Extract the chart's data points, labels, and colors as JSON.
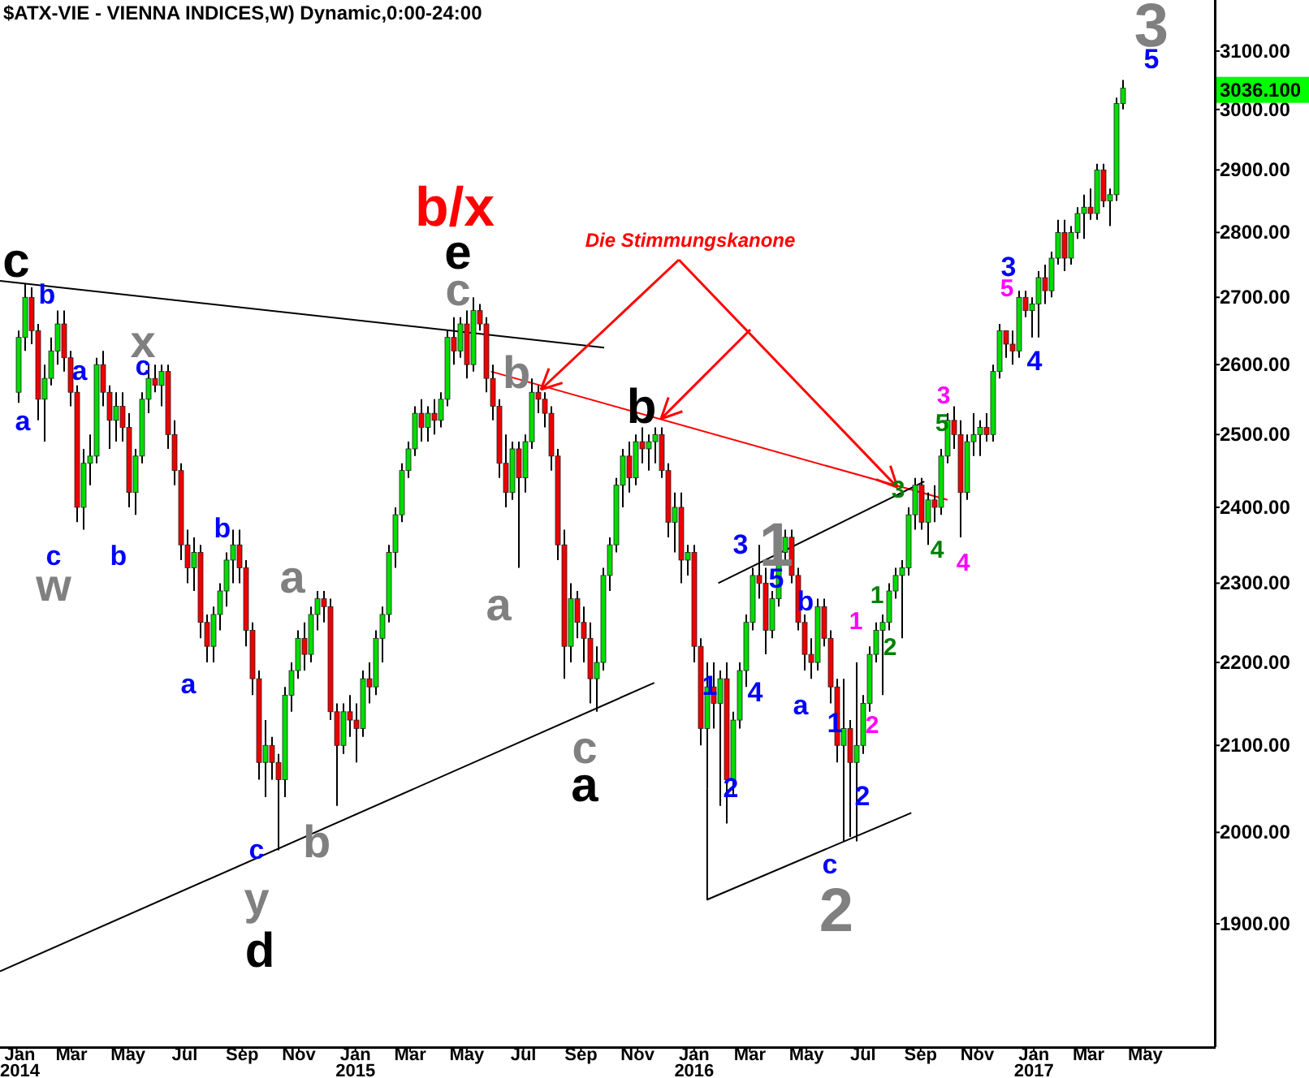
{
  "chart_data": {
    "type": "candlestick",
    "title": "$ATX-VIE - VIENNA INDICES,W) Dynamic,0:00-24:00",
    "log": true,
    "xlim": [
      "2013-12-14",
      "2017-07-15"
    ],
    "xticks": [
      {
        "value": "2014-01-01",
        "label": "Jan 2014"
      },
      {
        "value": "2014-03-01",
        "label": "Mar"
      },
      {
        "value": "2014-05-01",
        "label": "May"
      },
      {
        "value": "2014-07-01",
        "label": "Jul"
      },
      {
        "value": "2014-09-01",
        "label": "Sep"
      },
      {
        "value": "2014-11-01",
        "label": "Nov"
      },
      {
        "value": "2015-01-01",
        "label": "Jan 2015"
      },
      {
        "value": "2015-03-01",
        "label": "Mar"
      },
      {
        "value": "2015-05-01",
        "label": "May"
      },
      {
        "value": "2015-07-01",
        "label": "Jul"
      },
      {
        "value": "2015-09-01",
        "label": "Sep"
      },
      {
        "value": "2015-11-01",
        "label": "Nov"
      },
      {
        "value": "2016-01-01",
        "label": "Jan 2016"
      },
      {
        "value": "2016-03-01",
        "label": "Mar"
      },
      {
        "value": "2016-05-01",
        "label": "May"
      },
      {
        "value": "2016-07-01",
        "label": "Jul"
      },
      {
        "value": "2016-09-01",
        "label": "Sep"
      },
      {
        "value": "2016-11-01",
        "label": "Nov"
      },
      {
        "value": "2017-01-01",
        "label": "Jan 2017"
      },
      {
        "value": "2017-03-01",
        "label": "Mar"
      },
      {
        "value": "2017-05-01",
        "label": "May"
      }
    ],
    "ylim": [
      1773,
      3190
    ],
    "yticks": [
      {
        "value": 1900,
        "label": "1900.00"
      },
      {
        "value": 2000,
        "label": "2000.00"
      },
      {
        "value": 2100,
        "label": "2100.00"
      },
      {
        "value": 2200,
        "label": "2200.00"
      },
      {
        "value": 2300,
        "label": "2300.00"
      },
      {
        "value": 2400,
        "label": "2400.00"
      },
      {
        "value": 2500,
        "label": "2500.00"
      },
      {
        "value": 2600,
        "label": "2600.00"
      },
      {
        "value": 2700,
        "label": "2700.00"
      },
      {
        "value": 2800,
        "label": "2800.00"
      },
      {
        "value": 2900,
        "label": "2900.00"
      },
      {
        "value": 3000,
        "label": "3000.00"
      },
      {
        "value": 3100,
        "label": "3100.00"
      }
    ],
    "x": [
      "2014-01-03",
      "2014-01-10",
      "2014-01-17",
      "2014-01-24",
      "2014-01-31",
      "2014-02-07",
      "2014-02-14",
      "2014-02-21",
      "2014-02-28",
      "2014-03-07",
      "2014-03-14",
      "2014-03-21",
      "2014-03-28",
      "2014-04-04",
      "2014-04-11",
      "2014-04-18",
      "2014-04-25",
      "2014-05-02",
      "2014-05-09",
      "2014-05-16",
      "2014-05-23",
      "2014-05-30",
      "2014-06-06",
      "2014-06-13",
      "2014-06-20",
      "2014-06-27",
      "2014-07-04",
      "2014-07-11",
      "2014-07-18",
      "2014-07-25",
      "2014-08-01",
      "2014-08-08",
      "2014-08-15",
      "2014-08-22",
      "2014-08-29",
      "2014-09-05",
      "2014-09-12",
      "2014-09-19",
      "2014-09-26",
      "2014-10-03",
      "2014-10-10",
      "2014-10-17",
      "2014-10-24",
      "2014-10-31",
      "2014-11-07",
      "2014-11-14",
      "2014-11-21",
      "2014-11-28",
      "2014-12-05",
      "2014-12-12",
      "2014-12-19",
      "2014-12-26",
      "2015-01-02",
      "2015-01-09",
      "2015-01-16",
      "2015-01-23",
      "2015-01-30",
      "2015-02-06",
      "2015-02-13",
      "2015-02-20",
      "2015-02-27",
      "2015-03-06",
      "2015-03-13",
      "2015-03-20",
      "2015-03-27",
      "2015-04-03",
      "2015-04-10",
      "2015-04-17",
      "2015-04-24",
      "2015-05-01",
      "2015-05-08",
      "2015-05-15",
      "2015-05-22",
      "2015-05-29",
      "2015-06-05",
      "2015-06-12",
      "2015-06-19",
      "2015-06-26",
      "2015-07-03",
      "2015-07-10",
      "2015-07-17",
      "2015-07-24",
      "2015-07-31",
      "2015-08-07",
      "2015-08-14",
      "2015-08-21",
      "2015-08-28",
      "2015-09-04",
      "2015-09-11",
      "2015-09-18",
      "2015-09-25",
      "2015-10-02",
      "2015-10-09",
      "2015-10-16",
      "2015-10-23",
      "2015-10-30",
      "2015-11-06",
      "2015-11-13",
      "2015-11-20",
      "2015-11-27",
      "2015-12-04",
      "2015-12-11",
      "2015-12-18",
      "2015-12-25",
      "2016-01-01",
      "2016-01-08",
      "2016-01-15",
      "2016-01-22",
      "2016-01-29",
      "2016-02-05",
      "2016-02-12",
      "2016-02-19",
      "2016-02-26",
      "2016-03-04",
      "2016-03-11",
      "2016-03-18",
      "2016-03-25",
      "2016-04-01",
      "2016-04-08",
      "2016-04-15",
      "2016-04-22",
      "2016-04-29",
      "2016-05-06",
      "2016-05-13",
      "2016-05-20",
      "2016-05-27",
      "2016-06-03",
      "2016-06-10",
      "2016-06-17",
      "2016-06-24",
      "2016-07-01",
      "2016-07-08",
      "2016-07-15",
      "2016-07-22",
      "2016-07-29",
      "2016-08-05",
      "2016-08-12",
      "2016-08-19",
      "2016-08-26",
      "2016-09-02",
      "2016-09-09",
      "2016-09-16",
      "2016-09-23",
      "2016-09-30",
      "2016-10-07",
      "2016-10-14",
      "2016-10-21",
      "2016-10-28",
      "2016-11-04",
      "2016-11-11",
      "2016-11-18",
      "2016-11-25",
      "2016-12-02",
      "2016-12-09",
      "2016-12-16",
      "2016-12-23",
      "2016-12-30",
      "2017-01-06",
      "2017-01-13",
      "2017-01-20",
      "2017-01-27",
      "2017-02-03",
      "2017-02-10",
      "2017-02-17",
      "2017-02-24",
      "2017-03-03",
      "2017-03-10",
      "2017-03-17",
      "2017-03-24",
      "2017-03-31",
      "2017-04-07"
    ],
    "ohlc": [
      [
        2560,
        2650,
        2545,
        2640
      ],
      [
        2640,
        2720,
        2620,
        2700
      ],
      [
        2700,
        2715,
        2630,
        2650
      ],
      [
        2650,
        2660,
        2520,
        2550
      ],
      [
        2550,
        2600,
        2490,
        2580
      ],
      [
        2580,
        2640,
        2570,
        2620
      ],
      [
        2620,
        2680,
        2600,
        2660
      ],
      [
        2660,
        2680,
        2590,
        2610
      ],
      [
        2610,
        2620,
        2540,
        2560
      ],
      [
        2560,
        2570,
        2380,
        2400
      ],
      [
        2400,
        2480,
        2370,
        2460
      ],
      [
        2460,
        2500,
        2430,
        2470
      ],
      [
        2470,
        2610,
        2460,
        2600
      ],
      [
        2600,
        2620,
        2540,
        2560
      ],
      [
        2560,
        2570,
        2480,
        2520
      ],
      [
        2520,
        2560,
        2490,
        2540
      ],
      [
        2540,
        2560,
        2490,
        2510
      ],
      [
        2510,
        2530,
        2400,
        2420
      ],
      [
        2420,
        2480,
        2390,
        2470
      ],
      [
        2470,
        2560,
        2460,
        2550
      ],
      [
        2550,
        2600,
        2530,
        2580
      ],
      [
        2580,
        2600,
        2560,
        2570
      ],
      [
        2570,
        2600,
        2540,
        2590
      ],
      [
        2590,
        2600,
        2480,
        2500
      ],
      [
        2500,
        2520,
        2430,
        2450
      ],
      [
        2450,
        2460,
        2330,
        2350
      ],
      [
        2350,
        2370,
        2300,
        2320
      ],
      [
        2320,
        2360,
        2290,
        2340
      ],
      [
        2340,
        2350,
        2230,
        2250
      ],
      [
        2250,
        2260,
        2200,
        2220
      ],
      [
        2220,
        2270,
        2200,
        2260
      ],
      [
        2260,
        2300,
        2240,
        2290
      ],
      [
        2290,
        2340,
        2270,
        2330
      ],
      [
        2330,
        2370,
        2300,
        2350
      ],
      [
        2350,
        2370,
        2300,
        2320
      ],
      [
        2320,
        2330,
        2220,
        2240
      ],
      [
        2240,
        2250,
        2160,
        2180
      ],
      [
        2180,
        2190,
        2060,
        2080
      ],
      [
        2080,
        2130,
        2040,
        2100
      ],
      [
        2100,
        2110,
        2060,
        2080
      ],
      [
        2080,
        2090,
        1980,
        2060
      ],
      [
        2060,
        2170,
        2040,
        2160
      ],
      [
        2160,
        2200,
        2140,
        2190
      ],
      [
        2190,
        2240,
        2180,
        2230
      ],
      [
        2230,
        2250,
        2190,
        2210
      ],
      [
        2210,
        2270,
        2200,
        2260
      ],
      [
        2260,
        2290,
        2240,
        2280
      ],
      [
        2280,
        2290,
        2250,
        2270
      ],
      [
        2270,
        2280,
        2130,
        2140
      ],
      [
        2140,
        2150,
        2030,
        2100
      ],
      [
        2100,
        2150,
        2090,
        2140
      ],
      [
        2140,
        2160,
        2110,
        2130
      ],
      [
        2130,
        2150,
        2080,
        2120
      ],
      [
        2120,
        2190,
        2110,
        2180
      ],
      [
        2180,
        2200,
        2150,
        2170
      ],
      [
        2170,
        2240,
        2160,
        2230
      ],
      [
        2230,
        2270,
        2200,
        2260
      ],
      [
        2260,
        2350,
        2250,
        2340
      ],
      [
        2340,
        2400,
        2320,
        2390
      ],
      [
        2390,
        2460,
        2380,
        2450
      ],
      [
        2450,
        2490,
        2440,
        2480
      ],
      [
        2480,
        2540,
        2470,
        2530
      ],
      [
        2530,
        2550,
        2490,
        2510
      ],
      [
        2510,
        2540,
        2490,
        2530
      ],
      [
        2530,
        2550,
        2500,
        2520
      ],
      [
        2520,
        2560,
        2510,
        2550
      ],
      [
        2550,
        2650,
        2540,
        2640
      ],
      [
        2640,
        2670,
        2600,
        2620
      ],
      [
        2620,
        2670,
        2610,
        2660
      ],
      [
        2660,
        2680,
        2580,
        2600
      ],
      [
        2600,
        2700,
        2590,
        2680
      ],
      [
        2680,
        2690,
        2650,
        2660
      ],
      [
        2660,
        2670,
        2560,
        2580
      ],
      [
        2580,
        2600,
        2520,
        2540
      ],
      [
        2540,
        2550,
        2440,
        2460
      ],
      [
        2460,
        2500,
        2400,
        2420
      ],
      [
        2420,
        2490,
        2410,
        2480
      ],
      [
        2480,
        2490,
        2320,
        2440
      ],
      [
        2440,
        2500,
        2420,
        2490
      ],
      [
        2490,
        2580,
        2480,
        2560
      ],
      [
        2560,
        2570,
        2530,
        2550
      ],
      [
        2550,
        2560,
        2510,
        2530
      ],
      [
        2530,
        2540,
        2450,
        2470
      ],
      [
        2470,
        2480,
        2330,
        2350
      ],
      [
        2350,
        2370,
        2180,
        2220
      ],
      [
        2220,
        2300,
        2200,
        2280
      ],
      [
        2280,
        2290,
        2230,
        2250
      ],
      [
        2250,
        2270,
        2200,
        2230
      ],
      [
        2230,
        2250,
        2150,
        2180
      ],
      [
        2180,
        2220,
        2140,
        2200
      ],
      [
        2200,
        2320,
        2190,
        2310
      ],
      [
        2310,
        2360,
        2290,
        2350
      ],
      [
        2350,
        2440,
        2340,
        2430
      ],
      [
        2430,
        2480,
        2400,
        2470
      ],
      [
        2470,
        2490,
        2420,
        2440
      ],
      [
        2440,
        2500,
        2430,
        2490
      ],
      [
        2490,
        2510,
        2460,
        2480
      ],
      [
        2480,
        2500,
        2450,
        2490
      ],
      [
        2490,
        2510,
        2460,
        2500
      ],
      [
        2500,
        2510,
        2440,
        2450
      ],
      [
        2450,
        2460,
        2360,
        2380
      ],
      [
        2380,
        2420,
        2340,
        2400
      ],
      [
        2400,
        2420,
        2300,
        2330
      ],
      [
        2330,
        2350,
        2310,
        2340
      ],
      [
        2340,
        2350,
        2200,
        2220
      ],
      [
        2220,
        2230,
        2100,
        2120
      ],
      [
        2120,
        2200,
        2050,
        2170
      ],
      [
        2170,
        2200,
        2120,
        2150
      ],
      [
        2150,
        2190,
        2030,
        2180
      ],
      [
        2180,
        2200,
        2010,
        2060
      ],
      [
        2060,
        2140,
        2040,
        2130
      ],
      [
        2130,
        2200,
        2120,
        2190
      ],
      [
        2190,
        2260,
        2170,
        2250
      ],
      [
        2250,
        2320,
        2240,
        2310
      ],
      [
        2310,
        2350,
        2280,
        2300
      ],
      [
        2300,
        2320,
        2210,
        2240
      ],
      [
        2240,
        2290,
        2230,
        2280
      ],
      [
        2280,
        2350,
        2270,
        2340
      ],
      [
        2340,
        2370,
        2330,
        2360
      ],
      [
        2360,
        2370,
        2300,
        2310
      ],
      [
        2310,
        2320,
        2240,
        2250
      ],
      [
        2250,
        2260,
        2190,
        2210
      ],
      [
        2210,
        2230,
        2180,
        2200
      ],
      [
        2200,
        2280,
        2190,
        2270
      ],
      [
        2270,
        2280,
        2220,
        2230
      ],
      [
        2230,
        2240,
        2150,
        2170
      ],
      [
        2170,
        2180,
        2080,
        2100
      ],
      [
        2100,
        2180,
        1990,
        2120
      ],
      [
        2120,
        2130,
        1995,
        2080
      ],
      [
        2080,
        2200,
        1990,
        2100
      ],
      [
        2100,
        2160,
        2090,
        2150
      ],
      [
        2150,
        2220,
        2140,
        2210
      ],
      [
        2210,
        2250,
        2200,
        2240
      ],
      [
        2240,
        2260,
        2160,
        2250
      ],
      [
        2250,
        2300,
        2240,
        2290
      ],
      [
        2290,
        2320,
        2280,
        2310
      ],
      [
        2310,
        2330,
        2230,
        2320
      ],
      [
        2320,
        2400,
        2310,
        2390
      ],
      [
        2390,
        2440,
        2370,
        2430
      ],
      [
        2430,
        2440,
        2370,
        2380
      ],
      [
        2380,
        2420,
        2350,
        2410
      ],
      [
        2410,
        2430,
        2380,
        2400
      ],
      [
        2400,
        2480,
        2390,
        2470
      ],
      [
        2470,
        2530,
        2460,
        2520
      ],
      [
        2520,
        2540,
        2480,
        2500
      ],
      [
        2500,
        2520,
        2360,
        2420
      ],
      [
        2420,
        2500,
        2410,
        2490
      ],
      [
        2490,
        2530,
        2470,
        2500
      ],
      [
        2500,
        2520,
        2470,
        2510
      ],
      [
        2510,
        2530,
        2490,
        2500
      ],
      [
        2500,
        2600,
        2490,
        2590
      ],
      [
        2590,
        2660,
        2580,
        2650
      ],
      [
        2650,
        2650,
        2610,
        2630
      ],
      [
        2630,
        2650,
        2600,
        2620
      ],
      [
        2620,
        2710,
        2610,
        2700
      ],
      [
        2700,
        2710,
        2670,
        2680
      ],
      [
        2680,
        2700,
        2640,
        2690
      ],
      [
        2690,
        2740,
        2640,
        2730
      ],
      [
        2730,
        2750,
        2690,
        2710
      ],
      [
        2710,
        2770,
        2700,
        2760
      ],
      [
        2760,
        2820,
        2750,
        2800
      ],
      [
        2800,
        2820,
        2740,
        2760
      ],
      [
        2760,
        2810,
        2750,
        2800
      ],
      [
        2800,
        2840,
        2790,
        2830
      ],
      [
        2830,
        2860,
        2790,
        2840
      ],
      [
        2840,
        2870,
        2820,
        2830
      ],
      [
        2830,
        2910,
        2820,
        2900
      ],
      [
        2900,
        2910,
        2840,
        2850
      ],
      [
        2850,
        2870,
        2810,
        2860
      ],
      [
        2860,
        3020,
        2850,
        3010
      ],
      [
        3010,
        3050,
        3000,
        3036
      ]
    ],
    "series": [
      {
        "type": "line",
        "color": "#000000",
        "x": [
          "2013-12-14",
          "2015-09-26"
        ],
        "values": [
          2725,
          2625
        ]
      },
      {
        "type": "line",
        "color": "#000000",
        "x": [
          "2013-12-14",
          "2015-11-19"
        ],
        "values": [
          1850,
          2175
        ]
      },
      {
        "type": "line",
        "color": "#ff0000",
        "x": [
          "2015-05-27",
          "2016-09-30"
        ],
        "values": [
          2590,
          2410
        ]
      },
      {
        "type": "line",
        "color": "#000000",
        "x": [
          "2016-01-27",
          "2016-09-05"
        ],
        "values": [
          2300,
          2435
        ]
      },
      {
        "type": "line",
        "color": "#000000",
        "x": [
          "2016-01-15",
          "2016-01-15",
          "2016-08-22"
        ],
        "values": [
          2050,
          1926,
          2022
        ]
      }
    ],
    "annotations": [
      "c",
      "b",
      "a",
      "a",
      "x",
      "c",
      "c",
      "w",
      "b",
      "b",
      "a",
      "a",
      "c",
      "y",
      "d",
      "b",
      "b/x",
      "e",
      "c",
      "b",
      "a",
      "c",
      "a",
      "b",
      {
        "text": "Die Stimmungskanone",
        "x": "2016-08-07",
        "y": 2427
      },
      "1",
      "5",
      "3",
      "4",
      "1",
      "2",
      "b",
      "a",
      "1",
      "2",
      "c",
      "2",
      "1",
      "2",
      "1",
      "2",
      "3",
      "4",
      "5",
      "3",
      "4",
      "3",
      "5",
      "4",
      "3",
      "5",
      "3036.100"
    ]
  }
}
